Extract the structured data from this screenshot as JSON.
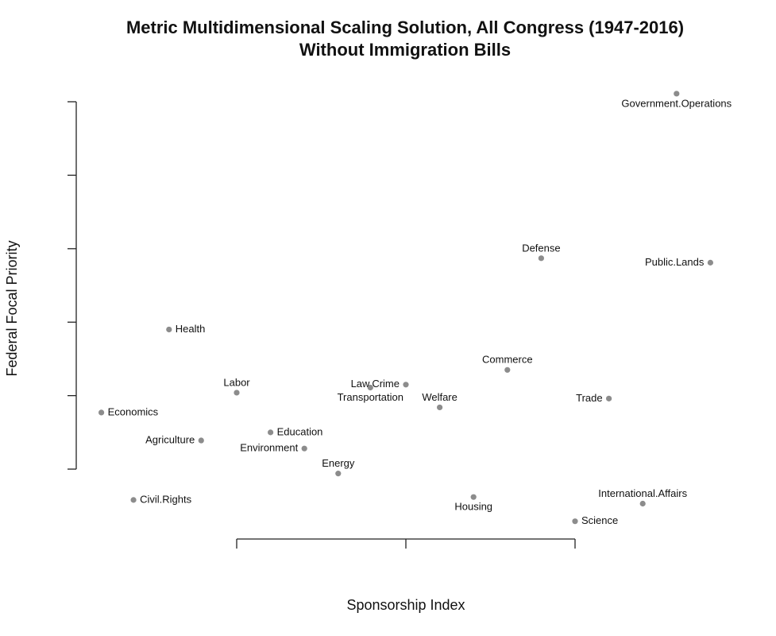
{
  "chart_data": {
    "type": "scatter",
    "title": "Metric Multidimensional Scaling Solution, All Congress (1947-2016)",
    "subtitle": "Without Immigration Bills",
    "x_label": "Sponsorship Index",
    "y_label": "Federal Focal Priority",
    "labels": [
      "Government.Operations",
      "Defense",
      "Public.Lands",
      "Health",
      "Commerce",
      "Labor",
      "Law.Crime",
      "Transportation",
      "Welfare",
      "Trade",
      "Economics",
      "Education",
      "Agriculture",
      "Environment",
      "Energy",
      "Civil.Rights",
      "Housing",
      "International.Affairs",
      "Science"
    ],
    "x": [
      3.6,
      2.8,
      3.8,
      0.6,
      2.6,
      1.0,
      2.0,
      1.79,
      2.2,
      3.2,
      0.2,
      1.2,
      0.79,
      1.4,
      1.6,
      0.39,
      2.4,
      3.4,
      3.0
    ],
    "values": [
      5.11,
      2.87,
      2.81,
      1.9,
      1.35,
      1.04,
      1.15,
      1.11,
      0.84,
      0.96,
      0.77,
      0.5,
      0.39,
      0.28,
      -0.06,
      -0.42,
      -0.38,
      -0.47,
      -0.71
    ],
    "color": "#8c8c8c",
    "xlim": [
      0.1,
      3.9
    ],
    "ylim": [
      -0.8,
      5.2
    ],
    "xticks": [
      1,
      2,
      3
    ],
    "yticks": [
      0,
      1,
      2,
      3,
      4,
      5
    ],
    "grid": false
  }
}
